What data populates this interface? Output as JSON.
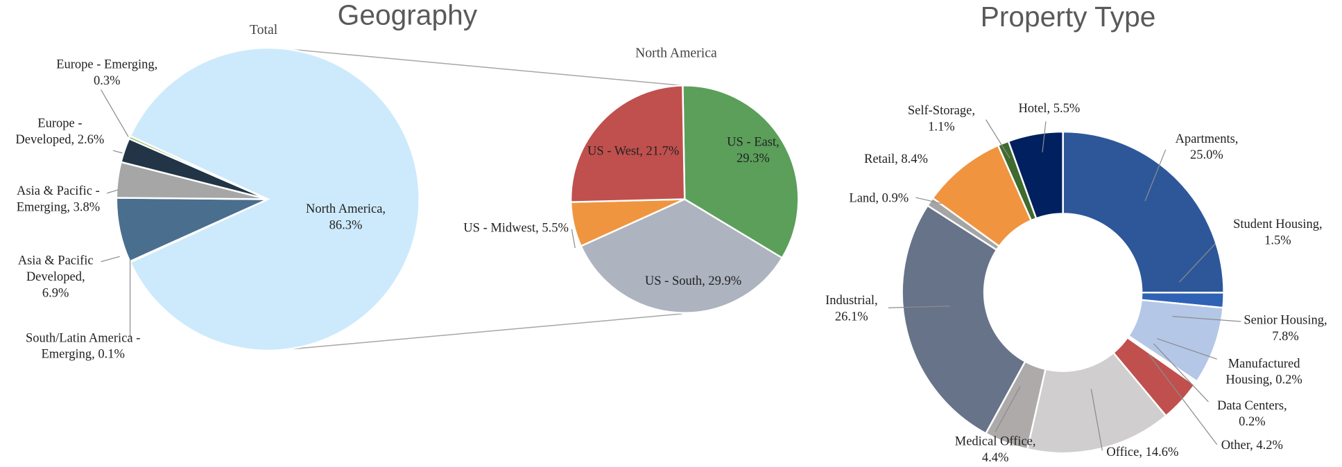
{
  "headings": [
    "Geography",
    "Property Type"
  ],
  "chart_data": [
    {
      "type": "pie",
      "title": "Total",
      "categories": [
        "North America",
        "South/Latin America - Emerging",
        "Asia & Pacific Developed",
        "Asia & Pacific - Emerging",
        "Europe - Developed",
        "Europe - Emerging"
      ],
      "values": [
        86.3,
        0.1,
        6.9,
        3.8,
        2.6,
        0.3
      ],
      "value_labels": [
        "North America, 86.3%",
        "South/Latin America - Emerging, 0.1%",
        "Asia & Pacific Developed, 6.9%",
        "Asia & Pacific - Emerging, 3.8%",
        "Europe - Developed, 2.6%",
        "Europe - Emerging, 0.3%"
      ],
      "colors": [
        "#cdeafc",
        "#5b8fd0",
        "#4a6e8e",
        "#a6a6a6",
        "#213546",
        "#9fbf6a"
      ]
    },
    {
      "type": "pie",
      "title": "North America",
      "categories": [
        "US - East",
        "US - South",
        "US - Midwest",
        "US - West"
      ],
      "values": [
        29.3,
        29.9,
        5.5,
        21.7
      ],
      "value_labels": [
        "US - East, 29.3%",
        "US - South, 29.9%",
        "US - Midwest, 5.5%",
        "US - West, 21.7%"
      ],
      "colors": [
        "#5b9f5a",
        "#adb3bf",
        "#ef9540",
        "#c0504d"
      ]
    },
    {
      "type": "donut",
      "categories": [
        "Apartments",
        "Student Housing",
        "Senior Housing",
        "Manufactured Housing",
        "Data Centers",
        "Other",
        "Office",
        "Medical Office",
        "Industrial",
        "Land",
        "Retail",
        "Self-Storage",
        "Hotel"
      ],
      "values": [
        25.0,
        1.5,
        7.8,
        0.2,
        0.2,
        4.2,
        14.6,
        4.4,
        26.1,
        0.9,
        8.4,
        1.1,
        5.5
      ],
      "value_labels": [
        "Apartments, 25.0%",
        "Student Housing, 1.5%",
        "Senior Housing, 7.8%",
        "Manufactured Housing, 0.2%",
        "Data Centers, 0.2%",
        "Other, 4.2%",
        "Office, 14.6%",
        "Medical Office, 4.4%",
        "Industrial, 26.1%",
        "Land, 0.9%",
        "Retail, 8.4%",
        "Self-Storage, 1.1%",
        "Hotel, 5.5%"
      ],
      "colors": [
        "#2e579a",
        "#2f62b5",
        "#b4c7e7",
        "#dbe3f0",
        "#f2f2f2",
        "#c0504d",
        "#d0cece",
        "#aeaaaa",
        "#667389",
        "#a5a5a5",
        "#f09440",
        "#3f6b2e",
        "#002060"
      ]
    }
  ]
}
